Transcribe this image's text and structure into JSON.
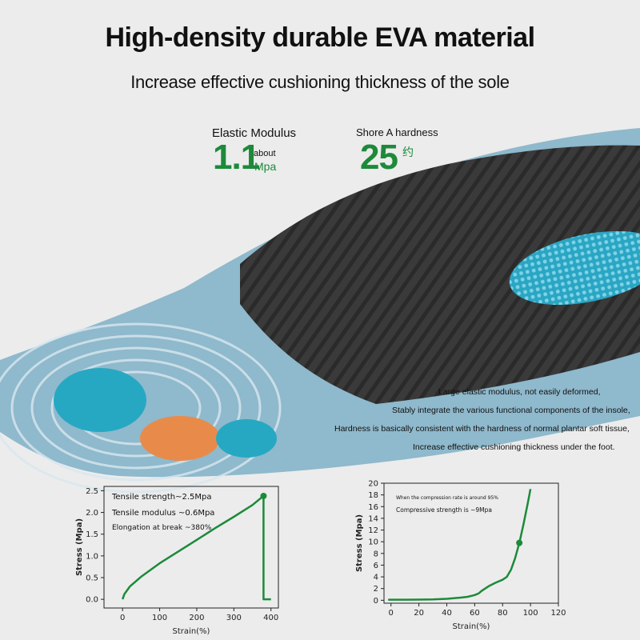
{
  "header": {
    "title": "High-density durable EVA material",
    "subtitle": "Increase effective cushioning thickness of the sole"
  },
  "stats": {
    "elastic": {
      "label": "Elastic Modulus",
      "value": "1.1",
      "prefix": "about",
      "unit": "Mpa"
    },
    "hardness": {
      "label": "Shore A hardness",
      "value": "25",
      "unit": "约"
    }
  },
  "description": [
    "Large elastic modulus, not easily deformed,",
    "Stably integrate the various functional components of the insole,",
    "Hardness is basically consistent with the hardness of normal plantar soft tissue,",
    "Increase effective cushioning thickness under the foot."
  ],
  "colors": {
    "accent_green": "#1d8a3a",
    "insole_blue": "#8fb9cc",
    "insole_dark": "#3a3a3a",
    "pad_cyan": "#27a8c2",
    "pad_orange": "#e88b4a"
  },
  "chart_data": [
    {
      "type": "line",
      "xlabel": "Strain(%)",
      "ylabel": "Stress (Mpa)",
      "xlim": [
        -50,
        420
      ],
      "ylim": [
        -0.2,
        2.6
      ],
      "xticks": [
        0,
        100,
        200,
        300,
        400
      ],
      "yticks": [
        0.0,
        0.5,
        1.0,
        1.5,
        2.0,
        2.5
      ],
      "annotations": [
        "Tensile strength~2.5Mpa",
        "Tensile modulus ~0.6Mpa",
        "Elongation at break ~380%"
      ],
      "series": [
        {
          "x": [
            0,
            5,
            20,
            50,
            100,
            150,
            200,
            250,
            300,
            350,
            380,
            380,
            380,
            400
          ],
          "y": [
            0.0,
            0.12,
            0.3,
            0.52,
            0.83,
            1.1,
            1.37,
            1.64,
            1.9,
            2.17,
            2.38,
            2.38,
            0.0,
            0.0
          ]
        }
      ],
      "marker": {
        "x": 380,
        "y": 2.38
      }
    },
    {
      "type": "line",
      "xlabel": "Strain(%)",
      "ylabel": "Stress (Mpa)",
      "xlim": [
        -5,
        120
      ],
      "ylim": [
        -0.5,
        20
      ],
      "xticks": [
        0,
        20,
        40,
        60,
        80,
        100,
        120
      ],
      "yticks": [
        0,
        2,
        4,
        6,
        8,
        10,
        12,
        14,
        16,
        18,
        20
      ],
      "annotations": [
        "When the compression rate is around 95%",
        "Compressive strength is ~9Mpa"
      ],
      "series": [
        {
          "x": [
            -2,
            10,
            20,
            30,
            40,
            50,
            55,
            60,
            63,
            65,
            70,
            75,
            80,
            83,
            86,
            89,
            92,
            95,
            98,
            100
          ],
          "y": [
            0.1,
            0.1,
            0.12,
            0.15,
            0.25,
            0.45,
            0.6,
            0.9,
            1.2,
            1.6,
            2.4,
            3.0,
            3.5,
            4.0,
            5.2,
            7.2,
            9.8,
            13.0,
            16.5,
            19.0
          ]
        }
      ],
      "marker": {
        "x": 92,
        "y": 9.8
      }
    }
  ]
}
